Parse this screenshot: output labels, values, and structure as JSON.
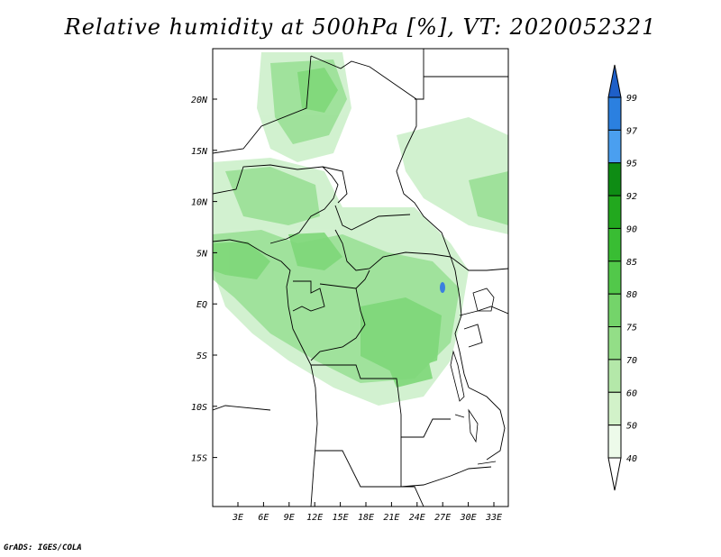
{
  "title": "Relative humidity at 500hPa [%], VT: 2020052321",
  "credit": "GrADS: IGES/COLA",
  "map": {
    "lat_labels": [
      "20N",
      "15N",
      "10N",
      "5N",
      "EQ",
      "5S",
      "10S",
      "15S"
    ],
    "lon_labels": [
      "3E",
      "6E",
      "9E",
      "12E",
      "15E",
      "18E",
      "21E",
      "24E",
      "27E",
      "30E",
      "33E"
    ],
    "humidity_fill": "#7ed879"
  },
  "colorbar": {
    "labels": [
      "99",
      "97",
      "95",
      "92",
      "90",
      "85",
      "80",
      "75",
      "70",
      "60",
      "50",
      "40"
    ],
    "colors": [
      "#1e5fc8",
      "#2b80e0",
      "#4a9ff0",
      "#0e8c14",
      "#22a81e",
      "#39bd33",
      "#52c84a",
      "#74d46a",
      "#93de87",
      "#b4e8a9",
      "#d2f2c9",
      "#edfaea"
    ]
  }
}
